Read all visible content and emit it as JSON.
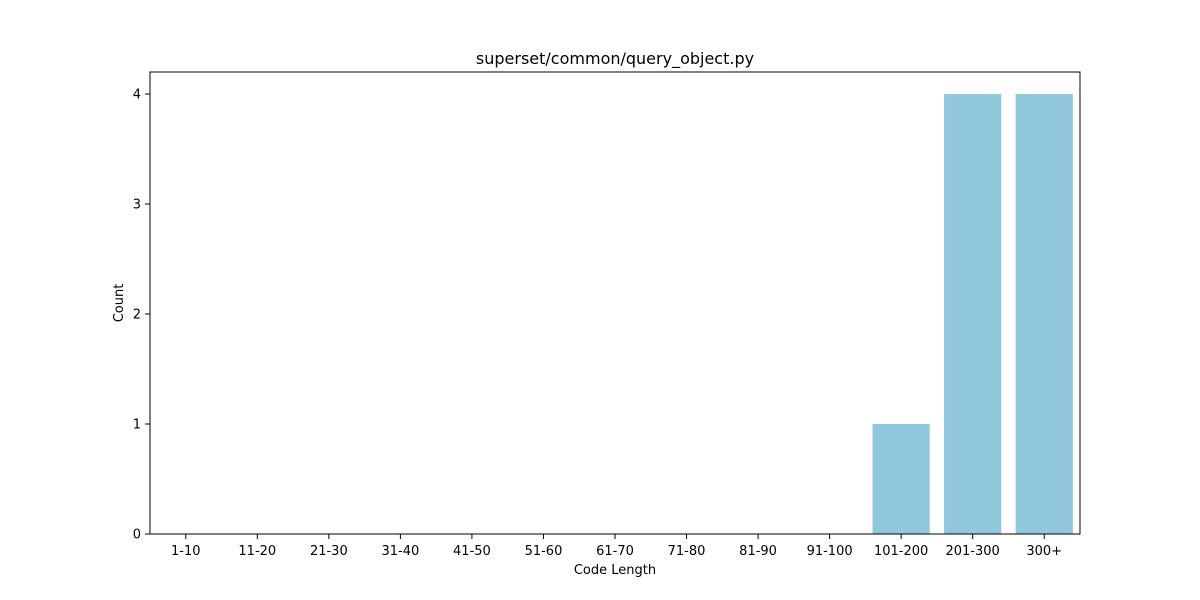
{
  "chart_data": {
    "type": "bar",
    "title": "superset/common/query_object.py",
    "xlabel": "Code Length",
    "ylabel": "Count",
    "categories": [
      "1-10",
      "11-20",
      "21-30",
      "31-40",
      "41-50",
      "51-60",
      "61-70",
      "71-80",
      "81-90",
      "91-100",
      "101-200",
      "201-300",
      "300+"
    ],
    "values": [
      0,
      0,
      0,
      0,
      0,
      0,
      0,
      0,
      0,
      0,
      1,
      4,
      4
    ],
    "ylim": [
      0,
      4.2
    ],
    "yticks": [
      0,
      1,
      2,
      3,
      4
    ],
    "bar_color": "#92c8de",
    "grid": false,
    "legend": "none"
  }
}
